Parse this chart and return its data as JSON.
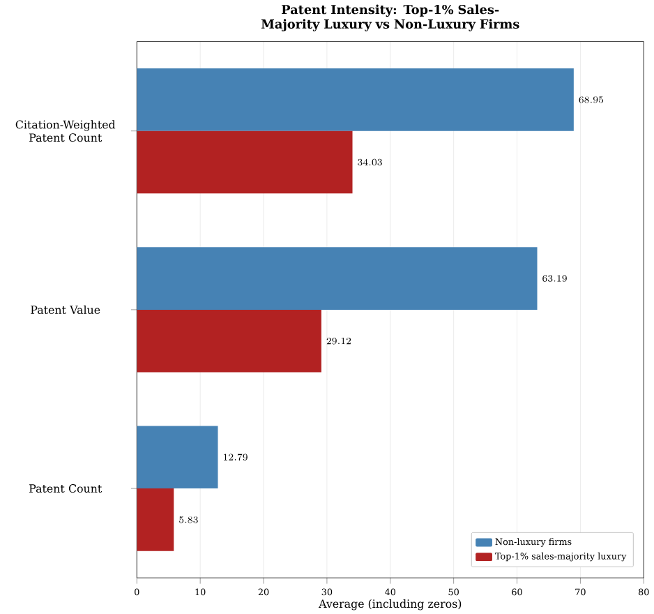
{
  "chart_data": {
    "type": "bar",
    "orientation": "horizontal",
    "title": "Patent Intensity: Top-1% Sales-Majority Luxury vs Non-Luxury Firms",
    "xlabel": "Average (including zeros)",
    "categories": [
      "Citation-Weighted Patent Count",
      "Patent Value",
      "Patent Count"
    ],
    "series": [
      {
        "name": "Non-luxury firms",
        "color": "#4682b4",
        "values": [
          68.95,
          63.19,
          12.79
        ]
      },
      {
        "name": "Top-1% sales-majority luxury",
        "color": "#b22222",
        "values": [
          34.03,
          29.12,
          5.83
        ]
      }
    ],
    "xlim": [
      0,
      80
    ],
    "xticks": [
      0,
      10,
      20,
      30,
      40,
      50,
      60,
      70,
      80
    ],
    "grid": "x",
    "legend": "bottom right",
    "data_labels": true
  }
}
